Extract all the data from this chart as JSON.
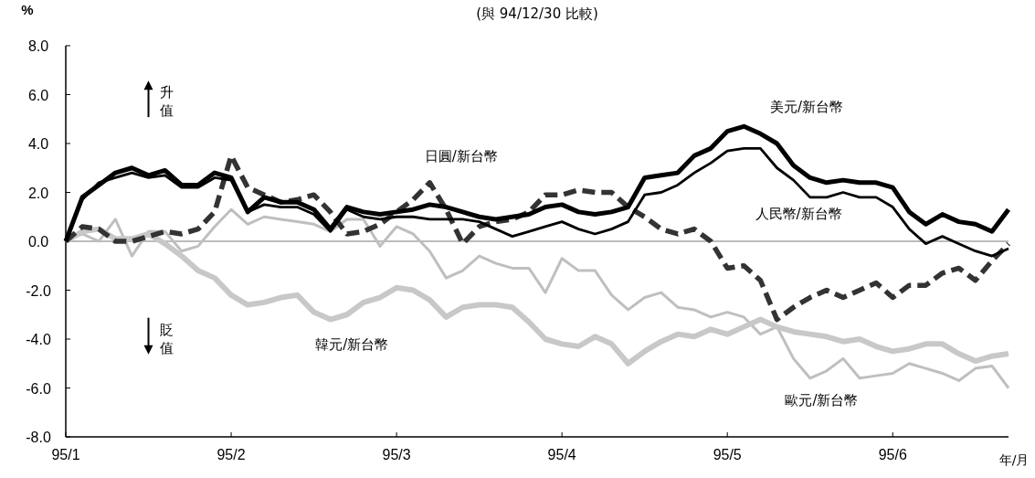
{
  "chart_data": {
    "type": "line",
    "title": "(與 94/12/30 比較)",
    "ylabel": "%",
    "xlabel": "年/月",
    "annotations": [
      "升值",
      "貶值"
    ],
    "categories": [
      "95/1",
      null,
      null,
      null,
      null,
      null,
      null,
      null,
      null,
      null,
      "95/2",
      null,
      null,
      null,
      null,
      null,
      null,
      null,
      null,
      null,
      "95/3",
      null,
      null,
      null,
      null,
      null,
      null,
      null,
      null,
      null,
      "95/4",
      null,
      null,
      null,
      null,
      null,
      null,
      null,
      null,
      null,
      "95/5",
      null,
      null,
      null,
      null,
      null,
      null,
      null,
      null,
      null,
      "95/6",
      null,
      null,
      null,
      null,
      null,
      null,
      null
    ],
    "ylim": [
      -8,
      8
    ],
    "yticks": [
      {
        "value": -8,
        "label": "-8.0"
      },
      {
        "value": -6,
        "label": "-6.0"
      },
      {
        "value": -4,
        "label": "-4.0"
      },
      {
        "value": -2,
        "label": "-2.0"
      },
      {
        "value": 0,
        "label": "0.0"
      },
      {
        "value": 2,
        "label": "2.0"
      },
      {
        "value": 4,
        "label": "4.0"
      },
      {
        "value": 6,
        "label": "6.0"
      },
      {
        "value": 8,
        "label": "8.0"
      }
    ],
    "ref_lines": [
      {
        "axis": "y",
        "value": 0,
        "color": "#a6a6a6"
      }
    ],
    "legend": false,
    "grid": false,
    "series": [
      {
        "name": "美元/新台幣",
        "color": "#000000",
        "values": [
          0,
          1.8,
          2.3,
          2.8,
          3.0,
          2.7,
          2.9,
          2.3,
          2.3,
          2.8,
          2.6,
          1.2,
          1.8,
          1.6,
          1.6,
          1.3,
          0.5,
          1.4,
          1.2,
          1.1,
          1.2,
          1.3,
          1.5,
          1.4,
          1.2,
          1.0,
          0.9,
          1.0,
          1.1,
          1.4,
          1.5,
          1.2,
          1.1,
          1.2,
          1.4,
          2.6,
          2.7,
          2.8,
          3.5,
          3.8,
          4.5,
          4.7,
          4.4,
          4.0,
          3.1,
          2.6,
          2.4,
          2.5,
          2.4,
          2.4,
          2.2,
          1.2,
          0.7,
          1.1,
          0.8,
          0.7,
          0.4,
          1.3
        ]
      },
      {
        "name": "人民幣/新台幣",
        "color": "#000000",
        "values": [
          0,
          1.7,
          2.4,
          2.6,
          2.8,
          2.6,
          2.7,
          2.2,
          2.2,
          2.6,
          2.5,
          1.2,
          1.5,
          1.4,
          1.4,
          1.1,
          0.4,
          1.3,
          1.0,
          0.9,
          1.0,
          1.0,
          0.9,
          0.9,
          0.9,
          0.8,
          0.5,
          0.2,
          0.4,
          0.6,
          0.8,
          0.5,
          0.3,
          0.5,
          0.8,
          1.9,
          2.0,
          2.3,
          2.8,
          3.2,
          3.7,
          3.8,
          3.8,
          3.0,
          2.5,
          1.8,
          1.8,
          2.0,
          1.8,
          1.8,
          1.4,
          0.5,
          -0.1,
          0.2,
          -0.1,
          -0.4,
          -0.6,
          -0.3
        ]
      },
      {
        "name": "日圓/新台幣",
        "color": "#333333",
        "line_style": "dashed",
        "values": [
          0,
          0.6,
          0.5,
          0.0,
          0.0,
          0.2,
          0.4,
          0.3,
          0.5,
          1.2,
          3.5,
          2.2,
          1.9,
          1.6,
          1.7,
          1.9,
          1.2,
          0.3,
          0.4,
          0.7,
          1.2,
          1.7,
          2.4,
          1.3,
          -0.1,
          0.6,
          0.8,
          0.9,
          1.2,
          1.9,
          1.9,
          2.1,
          2.0,
          2.0,
          1.4,
          1.0,
          0.5,
          0.3,
          0.5,
          0.0,
          -1.1,
          -1.0,
          -1.6,
          -3.2,
          -2.7,
          -2.3,
          -2.0,
          -2.3,
          -2.0,
          -1.7,
          -2.3,
          -1.8,
          -1.8,
          -1.3,
          -1.1,
          -1.6,
          -0.8,
          -0.1
        ]
      },
      {
        "name": "韓元/新台幣",
        "color": "#c8c8c8",
        "values": [
          0,
          0.4,
          0.5,
          0.1,
          0.1,
          0.3,
          -0.1,
          -0.6,
          -1.2,
          -1.5,
          -2.2,
          -2.6,
          -2.5,
          -2.3,
          -2.2,
          -2.9,
          -3.2,
          -3.0,
          -2.5,
          -2.3,
          -1.9,
          -2.0,
          -2.4,
          -3.1,
          -2.7,
          -2.6,
          -2.6,
          -2.7,
          -3.3,
          -4.0,
          -4.2,
          -4.3,
          -3.9,
          -4.2,
          -5.0,
          -4.5,
          -4.1,
          -3.8,
          -3.9,
          -3.6,
          -3.8,
          -3.5,
          -3.2,
          -3.5,
          -3.7,
          -3.8,
          -3.9,
          -4.1,
          -4.0,
          -4.3,
          -4.5,
          -4.4,
          -4.2,
          -4.2,
          -4.6,
          -4.9,
          -4.7,
          -4.6
        ]
      },
      {
        "name": "歐元/新台幣",
        "color": "#bfbfbf",
        "values": [
          0,
          0.3,
          0.0,
          0.9,
          -0.6,
          0.4,
          0.4,
          -0.4,
          -0.2,
          0.6,
          1.3,
          0.7,
          1.0,
          0.9,
          0.8,
          0.7,
          0.4,
          0.9,
          0.9,
          -0.2,
          0.6,
          0.3,
          -0.4,
          -1.5,
          -1.2,
          -0.6,
          -0.9,
          -1.1,
          -1.1,
          -2.1,
          -0.7,
          -1.2,
          -1.2,
          -2.2,
          -2.8,
          -2.3,
          -2.1,
          -2.7,
          -2.8,
          -3.1,
          -2.9,
          -3.1,
          -3.8,
          -3.5,
          -4.8,
          -5.6,
          -5.3,
          -4.8,
          -5.6,
          -5.5,
          -5.4,
          -5.0,
          -5.2,
          -5.4,
          -5.7,
          -5.2,
          -5.1,
          -6.0
        ]
      }
    ]
  }
}
